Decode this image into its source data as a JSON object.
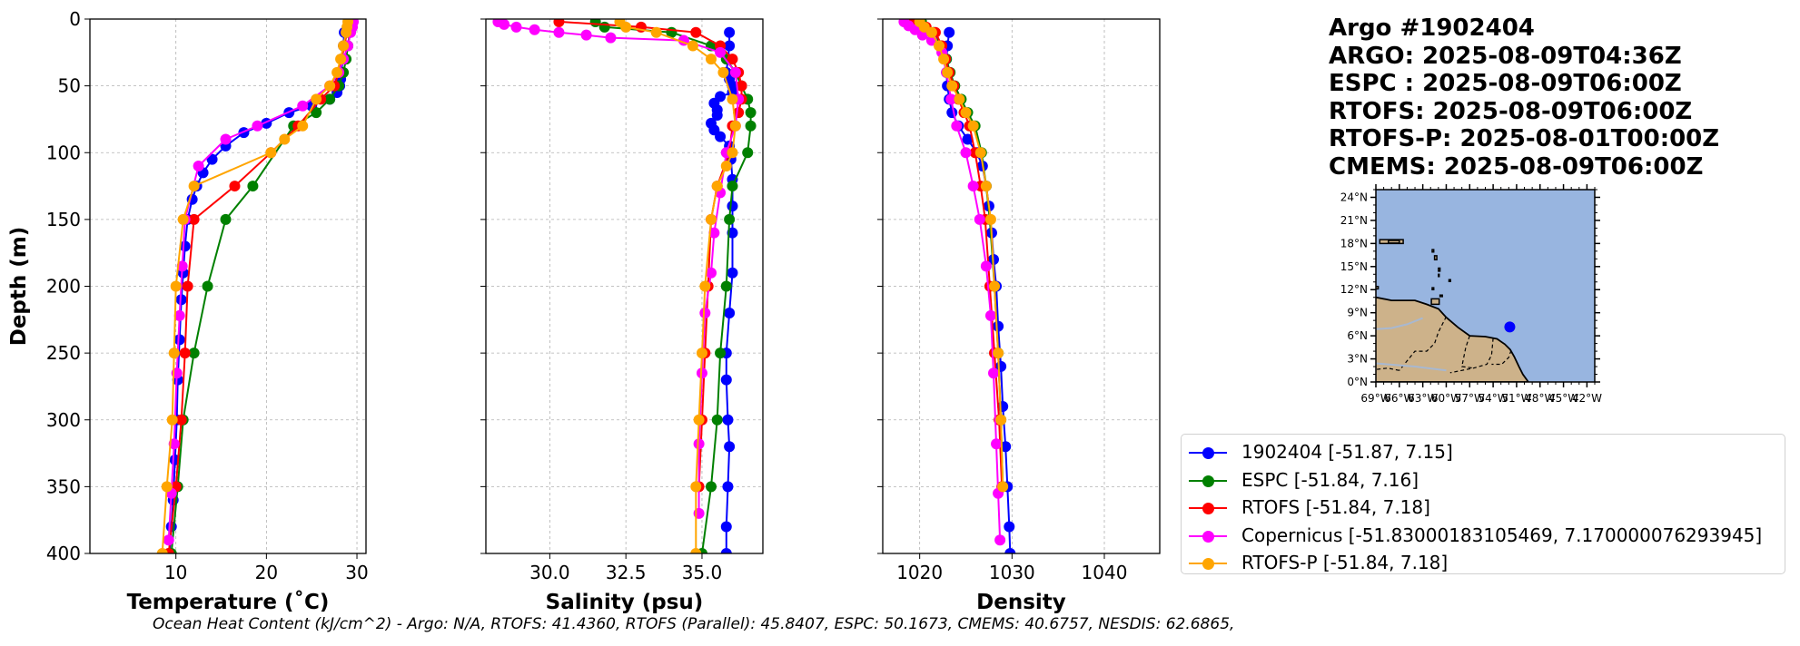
{
  "title": {
    "lines": [
      "Argo #1902404",
      "ARGO: 2025-08-09T04:36Z",
      "ESPC : 2025-08-09T06:00Z",
      "RTOFS: 2025-08-09T06:00Z",
      "RTOFS-P: 2025-08-01T00:00Z",
      "CMEMS: 2025-08-09T06:00Z"
    ]
  },
  "footer": {
    "ohc_text": "Ocean Heat Content (kJ/cm^2) - Argo: N/A,  RTOFS: 41.4360,  RTOFS (Parallel): 45.8407,  ESPC: 50.1673,  CMEMS: 40.6757,  NESDIS: 62.6865,"
  },
  "legend": [
    {
      "label": "1902404 [-51.87, 7.15]",
      "color": "#0000ff"
    },
    {
      "label": "ESPC [-51.84, 7.16]",
      "color": "#008000"
    },
    {
      "label": "RTOFS [-51.84, 7.18]",
      "color": "#ff0000"
    },
    {
      "label": "Copernicus [-51.83000183105469, 7.170000076293945]",
      "color": "#ff00ff"
    },
    {
      "label": "RTOFS-P [-51.84, 7.18]",
      "color": "#ffa500"
    }
  ],
  "map": {
    "lat_ticks": [
      "24°N",
      "21°N",
      "18°N",
      "15°N",
      "12°N",
      "9°N",
      "6°N",
      "3°N",
      "0°N"
    ],
    "lon_ticks": [
      "69°W",
      "66°W",
      "63°W",
      "60°W",
      "57°W",
      "54°W",
      "51°W",
      "48°W",
      "45°W",
      "42°W"
    ],
    "extent": {
      "lon": [
        -69,
        -41
      ],
      "lat": [
        0,
        25
      ]
    },
    "float_position": {
      "lon": -51.87,
      "lat": 7.15
    },
    "ocean_color": "#98b5e0",
    "land_color": "#cdb28a",
    "marker_color": "#0000ff"
  },
  "chart_data": [
    {
      "type": "line",
      "panel": "temperature",
      "xlabel": "Temperature (˚C)",
      "ylabel": "Depth (m)",
      "xlim": [
        0.5,
        31
      ],
      "ylim": [
        400,
        0
      ],
      "xticks": [
        10,
        20,
        30
      ],
      "yticks": [
        0,
        50,
        100,
        150,
        200,
        250,
        300,
        350,
        400
      ],
      "grid": true,
      "series": [
        {
          "name": "1902404",
          "color": "#0000ff",
          "x": [
            28.6,
            28.5,
            28.4,
            28.3,
            28.2,
            28.1,
            27.8,
            27.0,
            25.0,
            22.5,
            20.0,
            17.5,
            15.5,
            14.0,
            13.0,
            12.3,
            11.8,
            11.3,
            11.0,
            10.8,
            10.6,
            10.4,
            10.2,
            10.1,
            9.9,
            9.7,
            9.5,
            9.3
          ],
          "y": [
            10,
            20,
            30,
            40,
            45,
            50,
            55,
            60,
            65,
            70,
            78,
            85,
            95,
            105,
            115,
            125,
            135,
            150,
            170,
            190,
            210,
            240,
            270,
            300,
            330,
            360,
            380,
            400
          ]
        },
        {
          "name": "ESPC",
          "color": "#008000",
          "x": [
            29.3,
            29.3,
            29.2,
            29.0,
            28.8,
            28.5,
            28.0,
            27.0,
            25.5,
            23.0,
            18.5,
            15.5,
            13.5,
            12.0,
            10.8,
            10.2,
            9.5
          ],
          "y": [
            2,
            6,
            10,
            20,
            30,
            40,
            50,
            60,
            70,
            80,
            125,
            150,
            200,
            250,
            300,
            350,
            400
          ]
        },
        {
          "name": "RTOFS",
          "color": "#ff0000",
          "x": [
            29.1,
            29.0,
            28.9,
            28.6,
            28.3,
            28.0,
            27.5,
            26.0,
            23.5,
            20.5,
            16.5,
            12.0,
            11.3,
            11.0,
            10.6,
            10.0,
            9.2
          ],
          "y": [
            2,
            6,
            10,
            20,
            30,
            40,
            50,
            60,
            80,
            100,
            125,
            150,
            200,
            250,
            300,
            350,
            400
          ]
        },
        {
          "name": "Copernicus",
          "color": "#ff00ff",
          "x": [
            29.6,
            29.5,
            29.3,
            29.0,
            28.5,
            28.0,
            27.0,
            24.0,
            19.0,
            15.5,
            12.5,
            11.0,
            10.7,
            10.4,
            10.1,
            9.8,
            9.5,
            9.2
          ],
          "y": [
            2,
            6,
            10,
            20,
            30,
            40,
            50,
            65,
            80,
            90,
            110,
            150,
            185,
            222,
            265,
            318,
            355,
            390
          ]
        },
        {
          "name": "RTOFS-P",
          "color": "#ffa500",
          "x": [
            29.0,
            28.9,
            28.8,
            28.5,
            28.2,
            27.8,
            27.0,
            25.5,
            24.0,
            22.0,
            20.5,
            12.0,
            10.8,
            10.0,
            9.8,
            9.6,
            9.0,
            8.5
          ],
          "y": [
            2,
            6,
            10,
            20,
            30,
            40,
            50,
            60,
            80,
            90,
            100,
            125,
            150,
            200,
            250,
            300,
            350,
            400
          ]
        }
      ]
    },
    {
      "type": "line",
      "panel": "salinity",
      "xlabel": "Salinity (psu)",
      "ylabel": "",
      "xlim": [
        27.9,
        37.0
      ],
      "ylim": [
        400,
        0
      ],
      "xticks": [
        30.0,
        32.5,
        35.0
      ],
      "xtick_labels": [
        "30.0",
        "32.5",
        "35.0"
      ],
      "yticks": [
        0,
        50,
        100,
        150,
        200,
        250,
        300,
        350,
        400
      ],
      "grid": true,
      "series": [
        {
          "name": "1902404",
          "color": "#0000ff",
          "x": [
            35.9,
            35.9,
            35.85,
            35.8,
            35.9,
            36.0,
            36.0,
            35.6,
            35.4,
            35.5,
            35.5,
            35.3,
            35.4,
            35.6,
            35.9,
            35.95,
            36.0,
            36.0,
            36.0,
            36.0,
            35.9,
            35.8,
            35.8,
            35.85,
            35.9,
            35.85,
            35.8,
            35.8
          ],
          "y": [
            10,
            20,
            30,
            40,
            45,
            50,
            55,
            58,
            63,
            68,
            72,
            78,
            83,
            88,
            95,
            105,
            120,
            140,
            160,
            190,
            220,
            250,
            270,
            300,
            320,
            350,
            380,
            400
          ]
        },
        {
          "name": "ESPC",
          "color": "#008000",
          "x": [
            31.5,
            31.8,
            34.0,
            35.3,
            35.8,
            36.1,
            36.3,
            36.5,
            36.6,
            36.6,
            36.5,
            36.0,
            35.9,
            35.8,
            35.6,
            35.5,
            35.3,
            35.0
          ],
          "y": [
            2,
            6,
            10,
            20,
            30,
            40,
            50,
            60,
            70,
            80,
            100,
            125,
            150,
            200,
            250,
            300,
            350,
            400
          ]
        },
        {
          "name": "RTOFS",
          "color": "#ff0000",
          "x": [
            30.3,
            33.0,
            34.8,
            35.6,
            36.0,
            36.2,
            36.3,
            36.3,
            36.2,
            36.0,
            35.9,
            35.5,
            35.3,
            35.2,
            35.1,
            35.0,
            34.9
          ],
          "y": [
            2,
            6,
            10,
            20,
            30,
            40,
            50,
            60,
            70,
            80,
            100,
            125,
            150,
            200,
            250,
            300,
            350
          ]
        },
        {
          "name": "Copernicus",
          "color": "#ff00ff",
          "x": [
            28.3,
            28.5,
            28.9,
            29.5,
            30.3,
            31.2,
            32.0,
            34.4,
            35.6,
            36.1,
            36.2,
            36.1,
            35.8,
            35.6,
            35.4,
            35.3,
            35.1,
            35.0,
            34.9,
            34.9
          ],
          "y": [
            2,
            4,
            6,
            8,
            10,
            12,
            14,
            16,
            25,
            40,
            60,
            80,
            100,
            130,
            160,
            190,
            220,
            265,
            318,
            370
          ]
        },
        {
          "name": "RTOFS-P",
          "color": "#ffa500",
          "x": [
            32.3,
            32.5,
            33.5,
            34.7,
            35.3,
            35.7,
            36.0,
            36.1,
            36.0,
            35.8,
            35.5,
            35.3,
            35.1,
            35.0,
            34.9,
            34.8,
            34.8
          ],
          "y": [
            2,
            6,
            10,
            20,
            30,
            40,
            60,
            80,
            100,
            110,
            125,
            150,
            200,
            250,
            300,
            350,
            400
          ]
        }
      ]
    },
    {
      "type": "line",
      "panel": "density",
      "xlabel": "Density",
      "ylabel": "",
      "xlim": [
        1016,
        1046
      ],
      "ylim": [
        400,
        0
      ],
      "xticks": [
        1020,
        1030,
        1040
      ],
      "yticks": [
        0,
        50,
        100,
        150,
        200,
        250,
        300,
        350,
        400
      ],
      "grid": true,
      "series": [
        {
          "name": "1902404",
          "color": "#0000ff",
          "x": [
            1023.2,
            1023.0,
            1022.9,
            1022.9,
            1023.0,
            1023.2,
            1023.5,
            1024.2,
            1025.2,
            1026.2,
            1026.8,
            1027.2,
            1027.5,
            1027.8,
            1028.0,
            1028.3,
            1028.5,
            1028.8,
            1029.0,
            1029.3,
            1029.5,
            1029.7,
            1029.8
          ],
          "y": [
            10,
            20,
            30,
            40,
            50,
            60,
            70,
            80,
            90,
            100,
            110,
            125,
            140,
            160,
            180,
            200,
            230,
            260,
            290,
            320,
            350,
            380,
            400
          ]
        },
        {
          "name": "ESPC",
          "color": "#008000",
          "x": [
            1020.2,
            1020.5,
            1021.5,
            1022.3,
            1022.9,
            1023.3,
            1023.8,
            1024.5,
            1025.2,
            1026.0,
            1026.7,
            1027.2,
            1027.6,
            1028.1,
            1028.5,
            1028.8,
            1029.0
          ],
          "y": [
            2,
            6,
            10,
            20,
            30,
            40,
            50,
            60,
            70,
            80,
            100,
            125,
            150,
            200,
            250,
            300,
            350
          ]
        },
        {
          "name": "RTOFS",
          "color": "#ff0000",
          "x": [
            1019.3,
            1020.7,
            1021.7,
            1022.4,
            1022.8,
            1023.2,
            1023.7,
            1024.2,
            1024.8,
            1025.4,
            1026.0,
            1026.6,
            1027.1,
            1027.6,
            1028.1,
            1028.6,
            1028.9
          ],
          "y": [
            2,
            6,
            10,
            20,
            30,
            40,
            50,
            60,
            70,
            80,
            100,
            125,
            150,
            200,
            250,
            300,
            350
          ]
        },
        {
          "name": "Copernicus",
          "color": "#ff00ff",
          "x": [
            1018.3,
            1018.8,
            1019.5,
            1020.3,
            1021.3,
            1022.4,
            1022.9,
            1023.4,
            1024.0,
            1025.0,
            1025.8,
            1026.5,
            1027.2,
            1027.7,
            1028.0,
            1028.3,
            1028.5,
            1028.7
          ],
          "y": [
            2,
            5,
            8,
            12,
            16,
            25,
            40,
            60,
            80,
            100,
            125,
            150,
            185,
            222,
            265,
            318,
            355,
            390
          ]
        },
        {
          "name": "RTOFS-P",
          "color": "#ffa500",
          "x": [
            1020.0,
            1020.5,
            1021.3,
            1022.1,
            1022.6,
            1023.0,
            1023.5,
            1024.3,
            1025.0,
            1025.8,
            1026.6,
            1027.2,
            1027.7,
            1028.1,
            1028.5,
            1028.8,
            1029.0
          ],
          "y": [
            2,
            6,
            10,
            20,
            30,
            40,
            50,
            60,
            70,
            80,
            100,
            125,
            150,
            200,
            250,
            300,
            350
          ]
        }
      ]
    }
  ]
}
